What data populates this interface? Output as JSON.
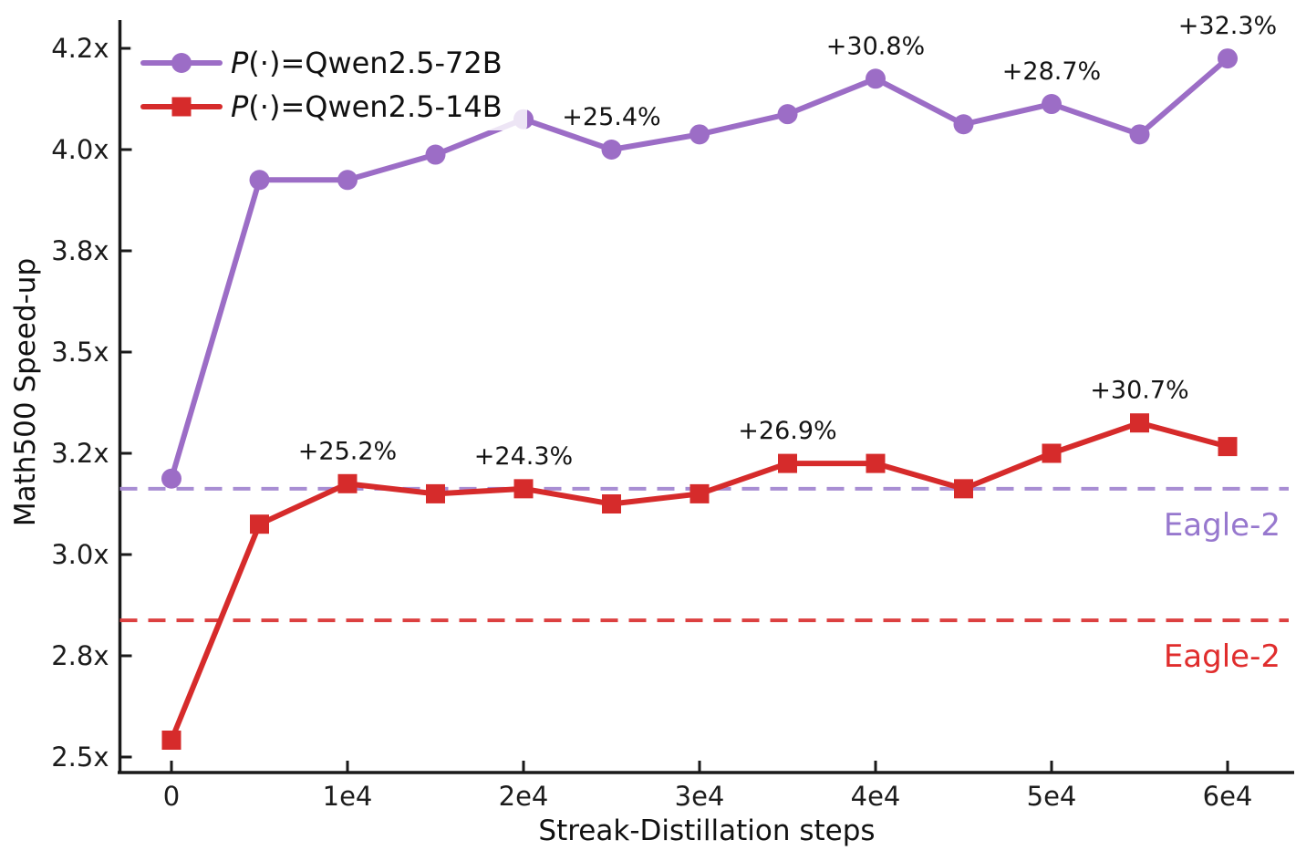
{
  "chart_data": {
    "type": "line",
    "title": "",
    "xlabel": "Streak-Distillation steps",
    "ylabel": "Math500 Speed-up",
    "grid": false,
    "legend_position": "upper left",
    "x_tick_labels": [
      {
        "value": 0,
        "label": "0"
      },
      {
        "value": 10000,
        "label": "1e4"
      },
      {
        "value": 20000,
        "label": "2e4"
      },
      {
        "value": 30000,
        "label": "3e4"
      },
      {
        "value": 40000,
        "label": "4e4"
      },
      {
        "value": 50000,
        "label": "5e4"
      },
      {
        "value": 60000,
        "label": "6e4"
      }
    ],
    "y_tick_labels": [
      {
        "value": 2.5,
        "label": "2.5x"
      },
      {
        "value": 2.8,
        "label": "2.8x"
      },
      {
        "value": 3.0,
        "label": "3.0x"
      },
      {
        "value": 3.2,
        "label": "3.2x"
      },
      {
        "value": 3.5,
        "label": "3.5x"
      },
      {
        "value": 3.8,
        "label": "3.8x"
      },
      {
        "value": 4.0,
        "label": "4.0x"
      },
      {
        "value": 4.2,
        "label": "4.2x"
      }
    ],
    "y_scale_note": "custom scale: listed tick values are equally spaced",
    "x": [
      0,
      5000,
      10000,
      15000,
      20000,
      25000,
      30000,
      35000,
      40000,
      45000,
      50000,
      55000,
      60000
    ],
    "series": [
      {
        "name": "P(·)=Qwen2.5-72B",
        "color": "#9c6dc6",
        "marker": "circle",
        "values": [
          3.15,
          3.94,
          3.94,
          3.99,
          4.06,
          4.0,
          4.03,
          4.07,
          4.14,
          4.05,
          4.09,
          4.03,
          4.18
        ],
        "annotations": [
          {
            "step": 25000,
            "text": "+25.4%"
          },
          {
            "step": 40000,
            "text": "+30.8%"
          },
          {
            "step": 50000,
            "text": "+28.7%"
          },
          {
            "step": 60000,
            "text": "+32.3%"
          }
        ]
      },
      {
        "name": "P(·)=Qwen2.5-14B",
        "color": "#d62b2b",
        "marker": "square",
        "values": [
          2.55,
          3.06,
          3.14,
          3.12,
          3.13,
          3.1,
          3.12,
          3.18,
          3.18,
          3.13,
          3.2,
          3.29,
          3.22
        ],
        "annotations": [
          {
            "step": 10000,
            "text": "+25.2%"
          },
          {
            "step": 20000,
            "text": "+24.3%"
          },
          {
            "step": 35000,
            "text": "+26.9%"
          },
          {
            "step": 55000,
            "text": "+30.7%"
          }
        ]
      }
    ],
    "baselines": [
      {
        "label": "Eagle-2",
        "value": 3.13,
        "line_color": "#a88dd3",
        "label_color": "#9778ce"
      },
      {
        "label": "Eagle-2",
        "value": 2.87,
        "line_color": "#dc4040",
        "label_color": "#e02d2d"
      }
    ]
  }
}
